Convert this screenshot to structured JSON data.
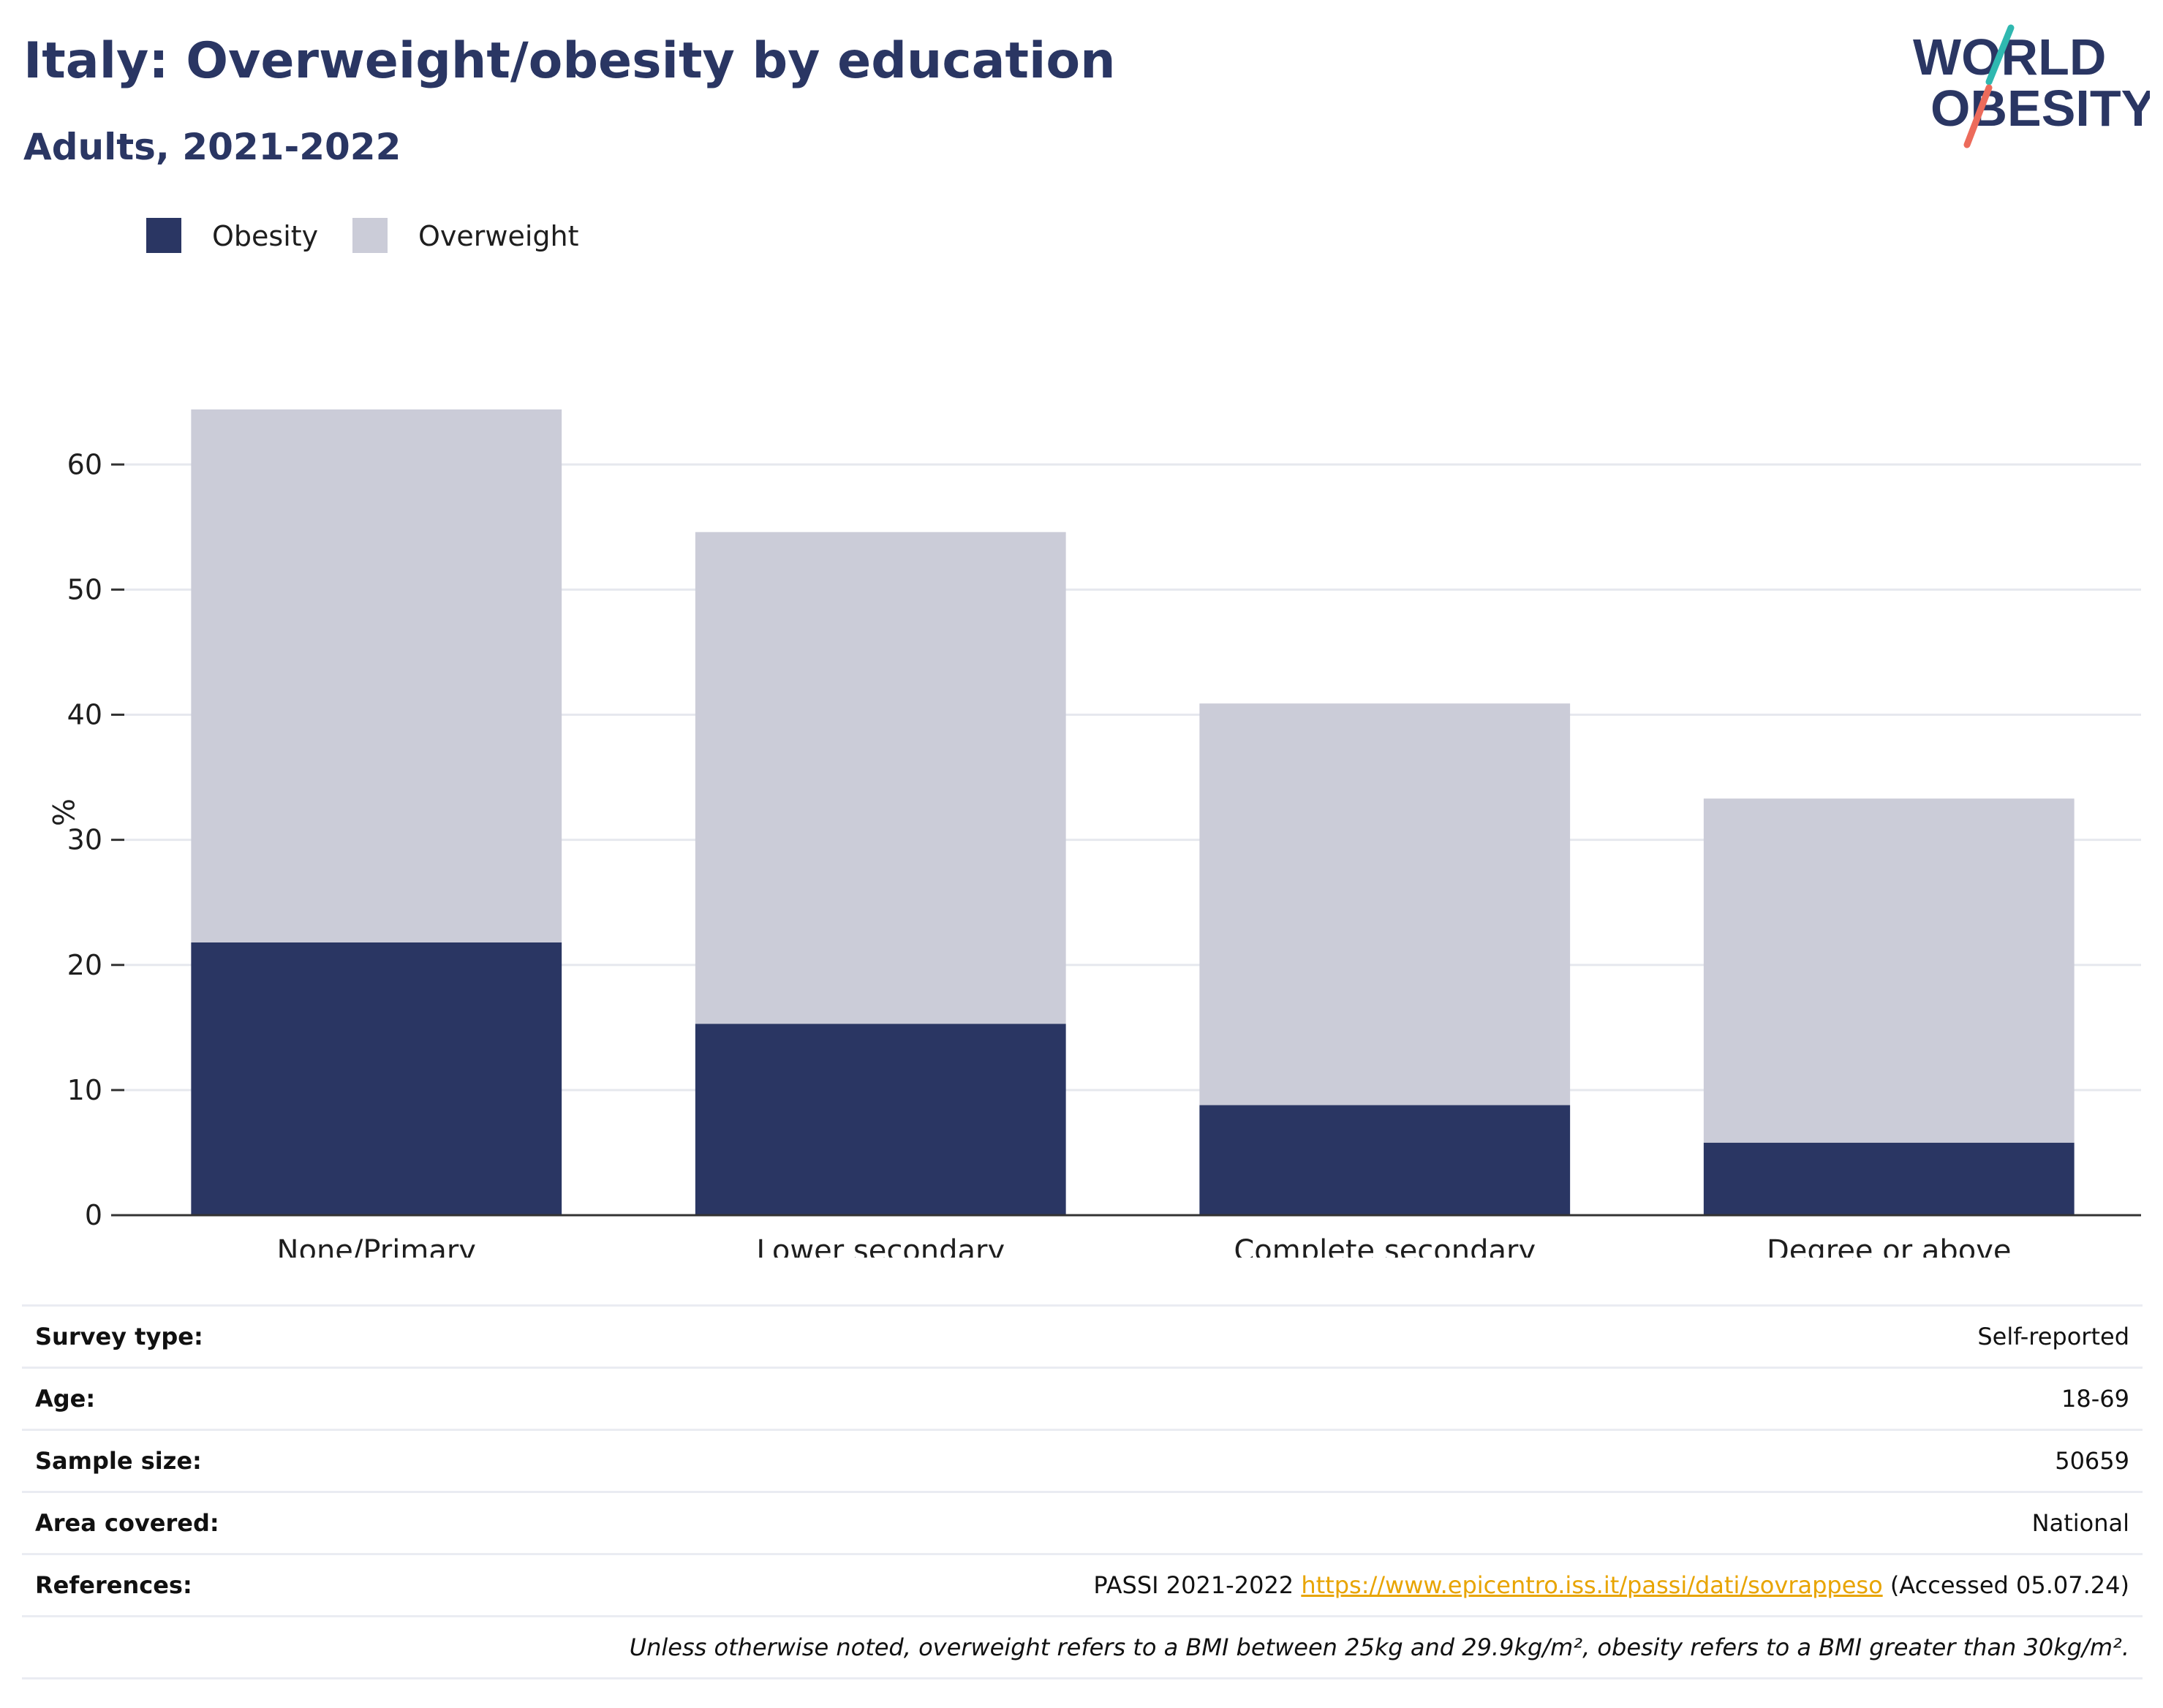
{
  "header": {
    "title": "Italy: Overweight/obesity by education",
    "subtitle": "Adults, 2021-2022"
  },
  "logo": {
    "line1": "WORLD",
    "line2": "OBESITY"
  },
  "legend": [
    {
      "label": "Obesity",
      "color": "#2a3663"
    },
    {
      "label": "Overweight",
      "color": "#cbccd8"
    }
  ],
  "chart_data": {
    "type": "bar",
    "stacked": true,
    "categories": [
      "None/Primary",
      "Lower secondary",
      "Complete secondary",
      "Degree or above"
    ],
    "series": [
      {
        "name": "Obesity",
        "color": "#2a3663",
        "values": [
          21.8,
          15.3,
          8.8,
          5.8
        ]
      },
      {
        "name": "Overweight",
        "color": "#cbccd8",
        "values": [
          42.6,
          39.3,
          32.1,
          27.5
        ]
      }
    ],
    "ylabel": "%",
    "ylim": [
      0,
      64.4
    ],
    "yticks": [
      0,
      10,
      20,
      30,
      40,
      50,
      60
    ],
    "grid": true,
    "legend_position": "top-left"
  },
  "info": {
    "survey_type": {
      "label": "Survey type:",
      "value": "Self-reported"
    },
    "age": {
      "label": "Age:",
      "value": "18-69"
    },
    "sample_size": {
      "label": "Sample size:",
      "value": "50659"
    },
    "area_covered": {
      "label": "Area covered:",
      "value": "National"
    },
    "references": {
      "label": "References:",
      "prefix": "PASSI 2021-2022",
      "link": "https://www.epicentro.iss.it/passi/dati/sovrappeso",
      "suffix": "(Accessed 05.07.24)"
    },
    "note": "Unless otherwise noted, overweight refers to a BMI between 25kg and 29.9kg/m², obesity refers to a BMI greater than 30kg/m²."
  }
}
